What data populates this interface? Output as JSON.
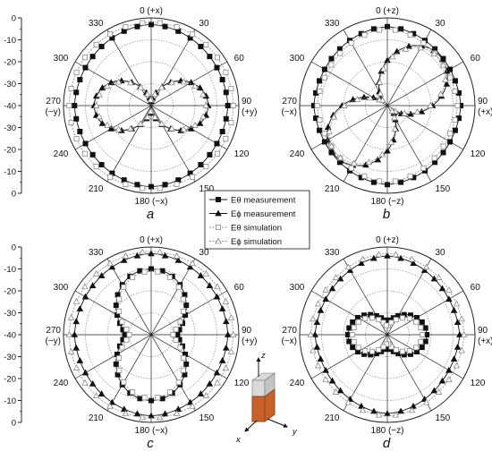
{
  "chart_data": [
    {
      "type": "polar",
      "panel_label": "a",
      "r_range_db": [
        -40,
        0
      ],
      "r_ticks": [
        "0",
        "-10",
        "-20",
        "-30",
        "-40",
        "-30",
        "-20",
        "-10",
        "0"
      ],
      "angle_labels": [
        {
          "deg": 0,
          "text": "0 (+x)"
        },
        {
          "deg": 30,
          "text": "30"
        },
        {
          "deg": 60,
          "text": "60"
        },
        {
          "deg": 90,
          "text": "90",
          "text2": "(+y)"
        },
        {
          "deg": 120,
          "text": "120"
        },
        {
          "deg": 150,
          "text": "150"
        },
        {
          "deg": 180,
          "text": "180 (−x)"
        },
        {
          "deg": 210,
          "text": "210"
        },
        {
          "deg": 240,
          "text": "240"
        },
        {
          "deg": 270,
          "text": "270",
          "text2": "(−y)"
        },
        {
          "deg": 300,
          "text": "300"
        },
        {
          "deg": 330,
          "text": "330"
        }
      ],
      "series": [
        {
          "name": "Eθ measurement",
          "model": "omni",
          "r0": -3,
          "amp": 2
        },
        {
          "name": "Eϕ measurement",
          "model": "fig8",
          "axis": 0,
          "floor": -38,
          "depth": -14
        },
        {
          "name": "Eθ simulation",
          "model": "omni",
          "r0": -2,
          "amp": 0.6
        },
        {
          "name": "Eϕ simulation",
          "model": "fig8",
          "axis": 0,
          "floor": -38,
          "depth": -15
        }
      ]
    },
    {
      "type": "polar",
      "panel_label": "b",
      "r_range_db": [
        -40,
        0
      ],
      "r_ticks": [],
      "angle_labels": [
        {
          "deg": 0,
          "text": "0 (+z)"
        },
        {
          "deg": 30,
          "text": "30"
        },
        {
          "deg": 60,
          "text": "60"
        },
        {
          "deg": 90,
          "text": "90",
          "text2": "(+x)"
        },
        {
          "deg": 120,
          "text": "120"
        },
        {
          "deg": 150,
          "text": "150"
        },
        {
          "deg": 180,
          "text": "180 (−z)"
        },
        {
          "deg": 210,
          "text": "210"
        },
        {
          "deg": 240,
          "text": "240"
        },
        {
          "deg": 270,
          "text": "270",
          "text2": "(−x)"
        },
        {
          "deg": 300,
          "text": "300"
        },
        {
          "deg": 330,
          "text": "330"
        }
      ],
      "series": [
        {
          "name": "Eθ measurement",
          "model": "omni",
          "r0": -4,
          "amp": 2.5
        },
        {
          "name": "Eϕ measurement",
          "model": "fig8",
          "axis": 135,
          "floor": -36,
          "depth": -7
        },
        {
          "name": "Eθ simulation",
          "model": "omni",
          "r0": -5,
          "amp": 3
        },
        {
          "name": "Eϕ simulation",
          "model": "fig8",
          "axis": 135,
          "floor": -37,
          "depth": -8
        }
      ]
    },
    {
      "type": "polar",
      "panel_label": "c",
      "r_range_db": [
        -40,
        0
      ],
      "r_ticks": [
        "0",
        "-10",
        "-20",
        "-30",
        "-40",
        "-30",
        "-20",
        "-10",
        "0"
      ],
      "angle_labels": [
        {
          "deg": 0,
          "text": "0 (+x)"
        },
        {
          "deg": 30,
          "text": "30"
        },
        {
          "deg": 60,
          "text": "60"
        },
        {
          "deg": 90,
          "text": "90",
          "text2": "(+y)"
        },
        {
          "deg": 120,
          "text": "120"
        },
        {
          "deg": 150,
          "text": "150"
        },
        {
          "deg": 180,
          "text": "180 (−x)"
        },
        {
          "deg": 210,
          "text": "210"
        },
        {
          "deg": 240,
          "text": "240"
        },
        {
          "deg": 270,
          "text": "270",
          "text2": "(−y)"
        },
        {
          "deg": 300,
          "text": "300"
        },
        {
          "deg": 330,
          "text": "330"
        }
      ],
      "series": [
        {
          "name": "Eθ measurement",
          "model": "fig8",
          "axis": 90,
          "floor": -28,
          "depth": -10
        },
        {
          "name": "Eϕ measurement",
          "model": "omni",
          "r0": -3,
          "amp": 2
        },
        {
          "name": "Eθ simulation",
          "model": "fig8",
          "axis": 90,
          "floor": -30,
          "depth": -11
        },
        {
          "name": "Eϕ simulation",
          "model": "omni",
          "r0": -2,
          "amp": 0.6
        }
      ]
    },
    {
      "type": "polar",
      "panel_label": "d",
      "r_range_db": [
        -40,
        0
      ],
      "r_ticks": [],
      "angle_labels": [
        {
          "deg": 0,
          "text": "0 (+z)"
        },
        {
          "deg": 30,
          "text": "30"
        },
        {
          "deg": 60,
          "text": "60"
        },
        {
          "deg": 90,
          "text": "90",
          "text2": "(+x)"
        },
        {
          "deg": 120,
          "text": "120"
        },
        {
          "deg": 150,
          "text": "150"
        },
        {
          "deg": 180,
          "text": "180 (−z)"
        },
        {
          "deg": 210,
          "text": "210"
        },
        {
          "deg": 240,
          "text": "240"
        },
        {
          "deg": 270,
          "text": "270",
          "text2": "(−x)"
        },
        {
          "deg": 300,
          "text": "300"
        },
        {
          "deg": 330,
          "text": "330"
        }
      ],
      "series": [
        {
          "name": "Eθ measurement",
          "model": "fig8",
          "axis": 0,
          "floor": -34,
          "depth": -22
        },
        {
          "name": "Eϕ measurement",
          "model": "omni",
          "r0": -4,
          "amp": 3
        },
        {
          "name": "Eθ simulation",
          "model": "fig8",
          "axis": 0,
          "floor": -36,
          "depth": -24
        },
        {
          "name": "Eϕ simulation",
          "model": "omni",
          "r0": -3,
          "amp": 2
        }
      ]
    }
  ],
  "legend": {
    "placement": "center",
    "entries": [
      {
        "label": "Eθ measurement",
        "marker": "square-filled"
      },
      {
        "label": "Eϕ measurement",
        "marker": "triangle-filled"
      },
      {
        "label": "Eθ simulation",
        "marker": "square-open"
      },
      {
        "label": "Eϕ simulation",
        "marker": "triangle-open"
      }
    ]
  },
  "axes_inset": {
    "x": "x",
    "y": "y",
    "z": "z"
  },
  "colors": {
    "ink": "#111111",
    "grid": "#222222",
    "grid_light": "#9a9a9a",
    "sim": "#8c8c8c",
    "fill_sim": "#ffffff",
    "antenna": "#c8612a"
  }
}
